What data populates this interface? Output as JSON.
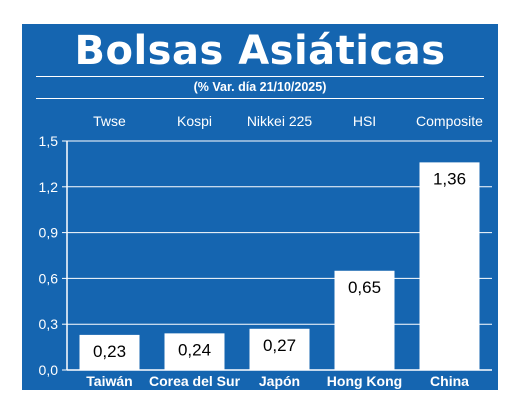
{
  "title": "Bolsas Asiáticas",
  "subtitle": "(% Var. día  21/10/2025)",
  "chart_data": {
    "type": "bar",
    "indices": [
      "Twse",
      "Kospi",
      "Nikkei 225",
      "HSI",
      "Composite"
    ],
    "categories": [
      "Taiwán",
      "Corea del Sur",
      "Japón",
      "Hong Kong",
      "China"
    ],
    "values": [
      0.23,
      0.24,
      0.27,
      0.65,
      1.36
    ],
    "value_labels": [
      "0,23",
      "0,24",
      "0,27",
      "0,65",
      "1,36"
    ],
    "ylim": [
      0,
      1.5
    ],
    "yticks": [
      0.0,
      0.3,
      0.6,
      0.9,
      1.2,
      1.5
    ],
    "ytick_labels": [
      "0,0",
      "0,3",
      "0,6",
      "0,9",
      "1,2",
      "1,5"
    ],
    "grid": true,
    "colors": {
      "background": "#1565b0",
      "bar": "#ffffff",
      "text": "#ffffff",
      "value_text": "#000000"
    }
  }
}
